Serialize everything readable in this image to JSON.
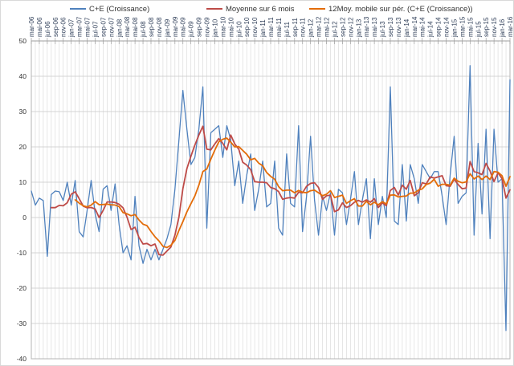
{
  "chart_data": {
    "type": "line",
    "title": "",
    "xlabel": "",
    "ylabel": "",
    "ylim": [
      -40,
      50
    ],
    "ytick_step": 10,
    "y_tick_labels": [
      "50",
      "40",
      "30",
      "20",
      "10",
      "0",
      "-10",
      "-20",
      "-30",
      "-40"
    ],
    "x_frequency": "monthly",
    "x_start": "mar-06",
    "x_end": "mar-16",
    "n_points": 121,
    "grid": "vertical gridline every month, horizontal every 10 units",
    "legend_position": "top",
    "x_tick_labels": [
      "mar-06",
      "mai-06",
      "jul-06",
      "sep-06",
      "nov-06",
      "jan-07",
      "mar-07",
      "mai-07",
      "jul-07",
      "sep-07",
      "nov-07",
      "jan-08",
      "mar-08",
      "mai-08",
      "jul-08",
      "sep-08",
      "nov-08",
      "jan-09",
      "mar-09",
      "mai-09",
      "jul-09",
      "sep-09",
      "nov-09",
      "jan-10",
      "mar-10",
      "mai-10",
      "jul-10",
      "sep-10",
      "nov-10",
      "jan-11",
      "mar-11",
      "mai-11",
      "jul-11",
      "sep-11",
      "nov-11",
      "jan-12",
      "mar-12",
      "mai-12",
      "jul-12",
      "sep-12",
      "nov-12",
      "jan-13",
      "mar-13",
      "mai-13",
      "jul-13",
      "sep-13",
      "nov-13",
      "jan-14",
      "mar-14",
      "mai-14",
      "jul-14",
      "sep-14",
      "nov-14",
      "jan-15",
      "mar-15",
      "mai-15",
      "jul-15",
      "sep-15",
      "nov-15",
      "jan-16",
      "mar-16"
    ],
    "series": [
      {
        "name": "C+E (Croissance)",
        "color": "#4F81BD",
        "stroke_width": 1.3,
        "values": [
          7.5,
          3.5,
          5.5,
          4.8,
          -11,
          6.5,
          7.5,
          7.3,
          4.8,
          10,
          3.5,
          10.5,
          -4,
          -5.5,
          2,
          10.5,
          1,
          -4,
          8,
          9,
          2,
          9.5,
          -2,
          -10,
          -8,
          -12,
          6,
          -8,
          -13,
          -9,
          -12,
          -9,
          -12,
          -9,
          -6,
          -2,
          8,
          22,
          36,
          25,
          15,
          17,
          25,
          37,
          -3,
          24,
          25,
          26,
          17,
          26,
          22,
          9,
          16,
          4,
          12,
          18,
          2,
          8,
          16,
          3,
          4,
          16,
          -3,
          -5,
          18,
          4,
          3,
          26,
          -4,
          6,
          23,
          5,
          -5,
          6,
          2,
          7,
          -5,
          8,
          7,
          -2,
          5,
          13,
          -2,
          5,
          11,
          -6,
          11,
          -2,
          6,
          0,
          37,
          -1,
          -2,
          15,
          -1,
          15,
          11,
          4,
          15,
          13,
          11,
          13,
          13,
          6,
          -2,
          12,
          23,
          4,
          6,
          7,
          43,
          -5,
          21,
          1,
          25,
          -6,
          25,
          10,
          11,
          -32,
          39
        ]
      },
      {
        "name": "Moyenne sur 6 mois",
        "color": "#BE4B48",
        "stroke_width": 1.8,
        "derived": "trailing_mean",
        "window": 6
      },
      {
        "name": "12Moy. mobile sur pér. (C+E (Croissance))",
        "color": "#E36C09",
        "stroke_width": 1.8,
        "derived": "trailing_mean",
        "window": 12
      }
    ],
    "axis_colors": {
      "gridline_vertical": "#dcdcdc",
      "gridline_horizontal": "#c8c8c8",
      "axis_line": "#9e9e9e",
      "plot_border": "#b4b4b4"
    }
  }
}
